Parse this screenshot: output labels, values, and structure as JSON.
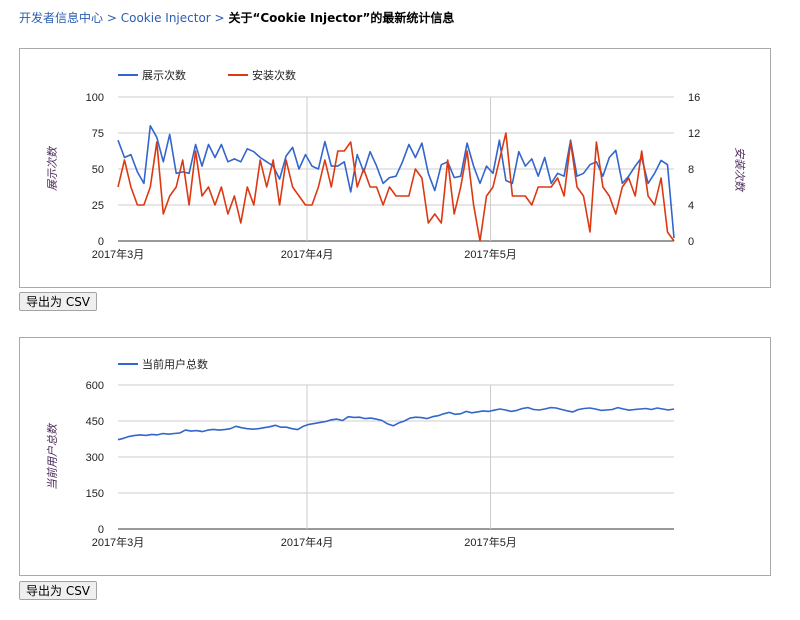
{
  "breadcrumb": {
    "items": [
      "开发者信息中心",
      "Cookie Injector"
    ],
    "separator": ">",
    "current": "关于“Cookie Injector”的最新统计信息"
  },
  "export_label": "导出为 CSV",
  "colors": {
    "blue": "#3366cc",
    "red": "#dc3912",
    "link": "#2a5db0"
  },
  "chart_data": [
    {
      "type": "line",
      "x_ticks": [
        "2017年3月",
        "2017年4月",
        "2017年5月"
      ],
      "ylabel_left": "展示次数",
      "ylabel_right": "安装次数",
      "ylim_left": [
        0,
        100
      ],
      "ylim_right": [
        0,
        16
      ],
      "yticks_left": [
        0,
        25,
        50,
        75,
        100
      ],
      "yticks_right": [
        0,
        4,
        8,
        12,
        16
      ],
      "legend_position": "top-left",
      "grid": true,
      "series": [
        {
          "name": "展示次数",
          "axis": "left",
          "color": "#3366cc",
          "values": [
            70,
            58,
            60,
            48,
            40,
            80,
            72,
            55,
            74,
            47,
            48,
            47,
            67,
            52,
            67,
            58,
            67,
            55,
            57,
            55,
            64,
            62,
            58,
            55,
            52,
            43,
            59,
            65,
            50,
            60,
            52,
            50,
            69,
            52,
            52,
            55,
            34,
            60,
            48,
            62,
            52,
            40,
            44,
            45,
            55,
            67,
            58,
            68,
            47,
            35,
            53,
            55,
            44,
            45,
            68,
            52,
            40,
            52,
            47,
            70,
            42,
            40,
            62,
            52,
            57,
            45,
            58,
            40,
            47,
            45,
            70,
            45,
            47,
            53,
            55,
            45,
            58,
            63,
            40,
            45,
            52,
            58,
            40,
            47,
            56,
            53,
            2
          ]
        },
        {
          "name": "安装次数",
          "axis": "right",
          "color": "#dc3912",
          "values": [
            6,
            9,
            6,
            4,
            4,
            6,
            11,
            3,
            5,
            6,
            9,
            4,
            10,
            5,
            6,
            4,
            6,
            3,
            5,
            2,
            6,
            4,
            9,
            6,
            9,
            4,
            9,
            6,
            5,
            4,
            4,
            6,
            9,
            6,
            10,
            10,
            11,
            6,
            8,
            6,
            6,
            4,
            6,
            5,
            5,
            5,
            8,
            7,
            2,
            3,
            2,
            9,
            3,
            6,
            10,
            4,
            0,
            5,
            6,
            9,
            12,
            5,
            5,
            5,
            4,
            6,
            6,
            6,
            7,
            5,
            11,
            6,
            5,
            1,
            11,
            6,
            5,
            3,
            6,
            7,
            5,
            10,
            5,
            4,
            7,
            1,
            0
          ]
        }
      ]
    },
    {
      "type": "line",
      "x_ticks": [
        "2017年3月",
        "2017年4月",
        "2017年5月"
      ],
      "ylabel_left": "当前用户总数",
      "ylim_left": [
        0,
        600
      ],
      "yticks_left": [
        0,
        150,
        300,
        450,
        600
      ],
      "legend_position": "top-left",
      "grid": true,
      "series": [
        {
          "name": "当前用户总数",
          "axis": "left",
          "color": "#3366cc",
          "values": [
            372,
            378,
            386,
            390,
            392,
            390,
            394,
            392,
            398,
            395,
            398,
            400,
            412,
            408,
            410,
            406,
            412,
            415,
            412,
            414,
            418,
            428,
            422,
            418,
            416,
            418,
            422,
            426,
            432,
            424,
            424,
            418,
            414,
            428,
            436,
            440,
            444,
            448,
            455,
            458,
            452,
            468,
            465,
            466,
            460,
            462,
            458,
            452,
            438,
            430,
            442,
            450,
            462,
            466,
            464,
            460,
            468,
            472,
            480,
            486,
            478,
            480,
            490,
            484,
            488,
            492,
            490,
            495,
            500,
            496,
            490,
            494,
            502,
            506,
            498,
            496,
            500,
            506,
            504,
            498,
            492,
            488,
            498,
            502,
            504,
            500,
            494,
            496,
            498,
            506,
            500,
            495,
            498,
            500,
            502,
            498,
            504,
            500,
            496,
            500
          ]
        }
      ]
    }
  ]
}
